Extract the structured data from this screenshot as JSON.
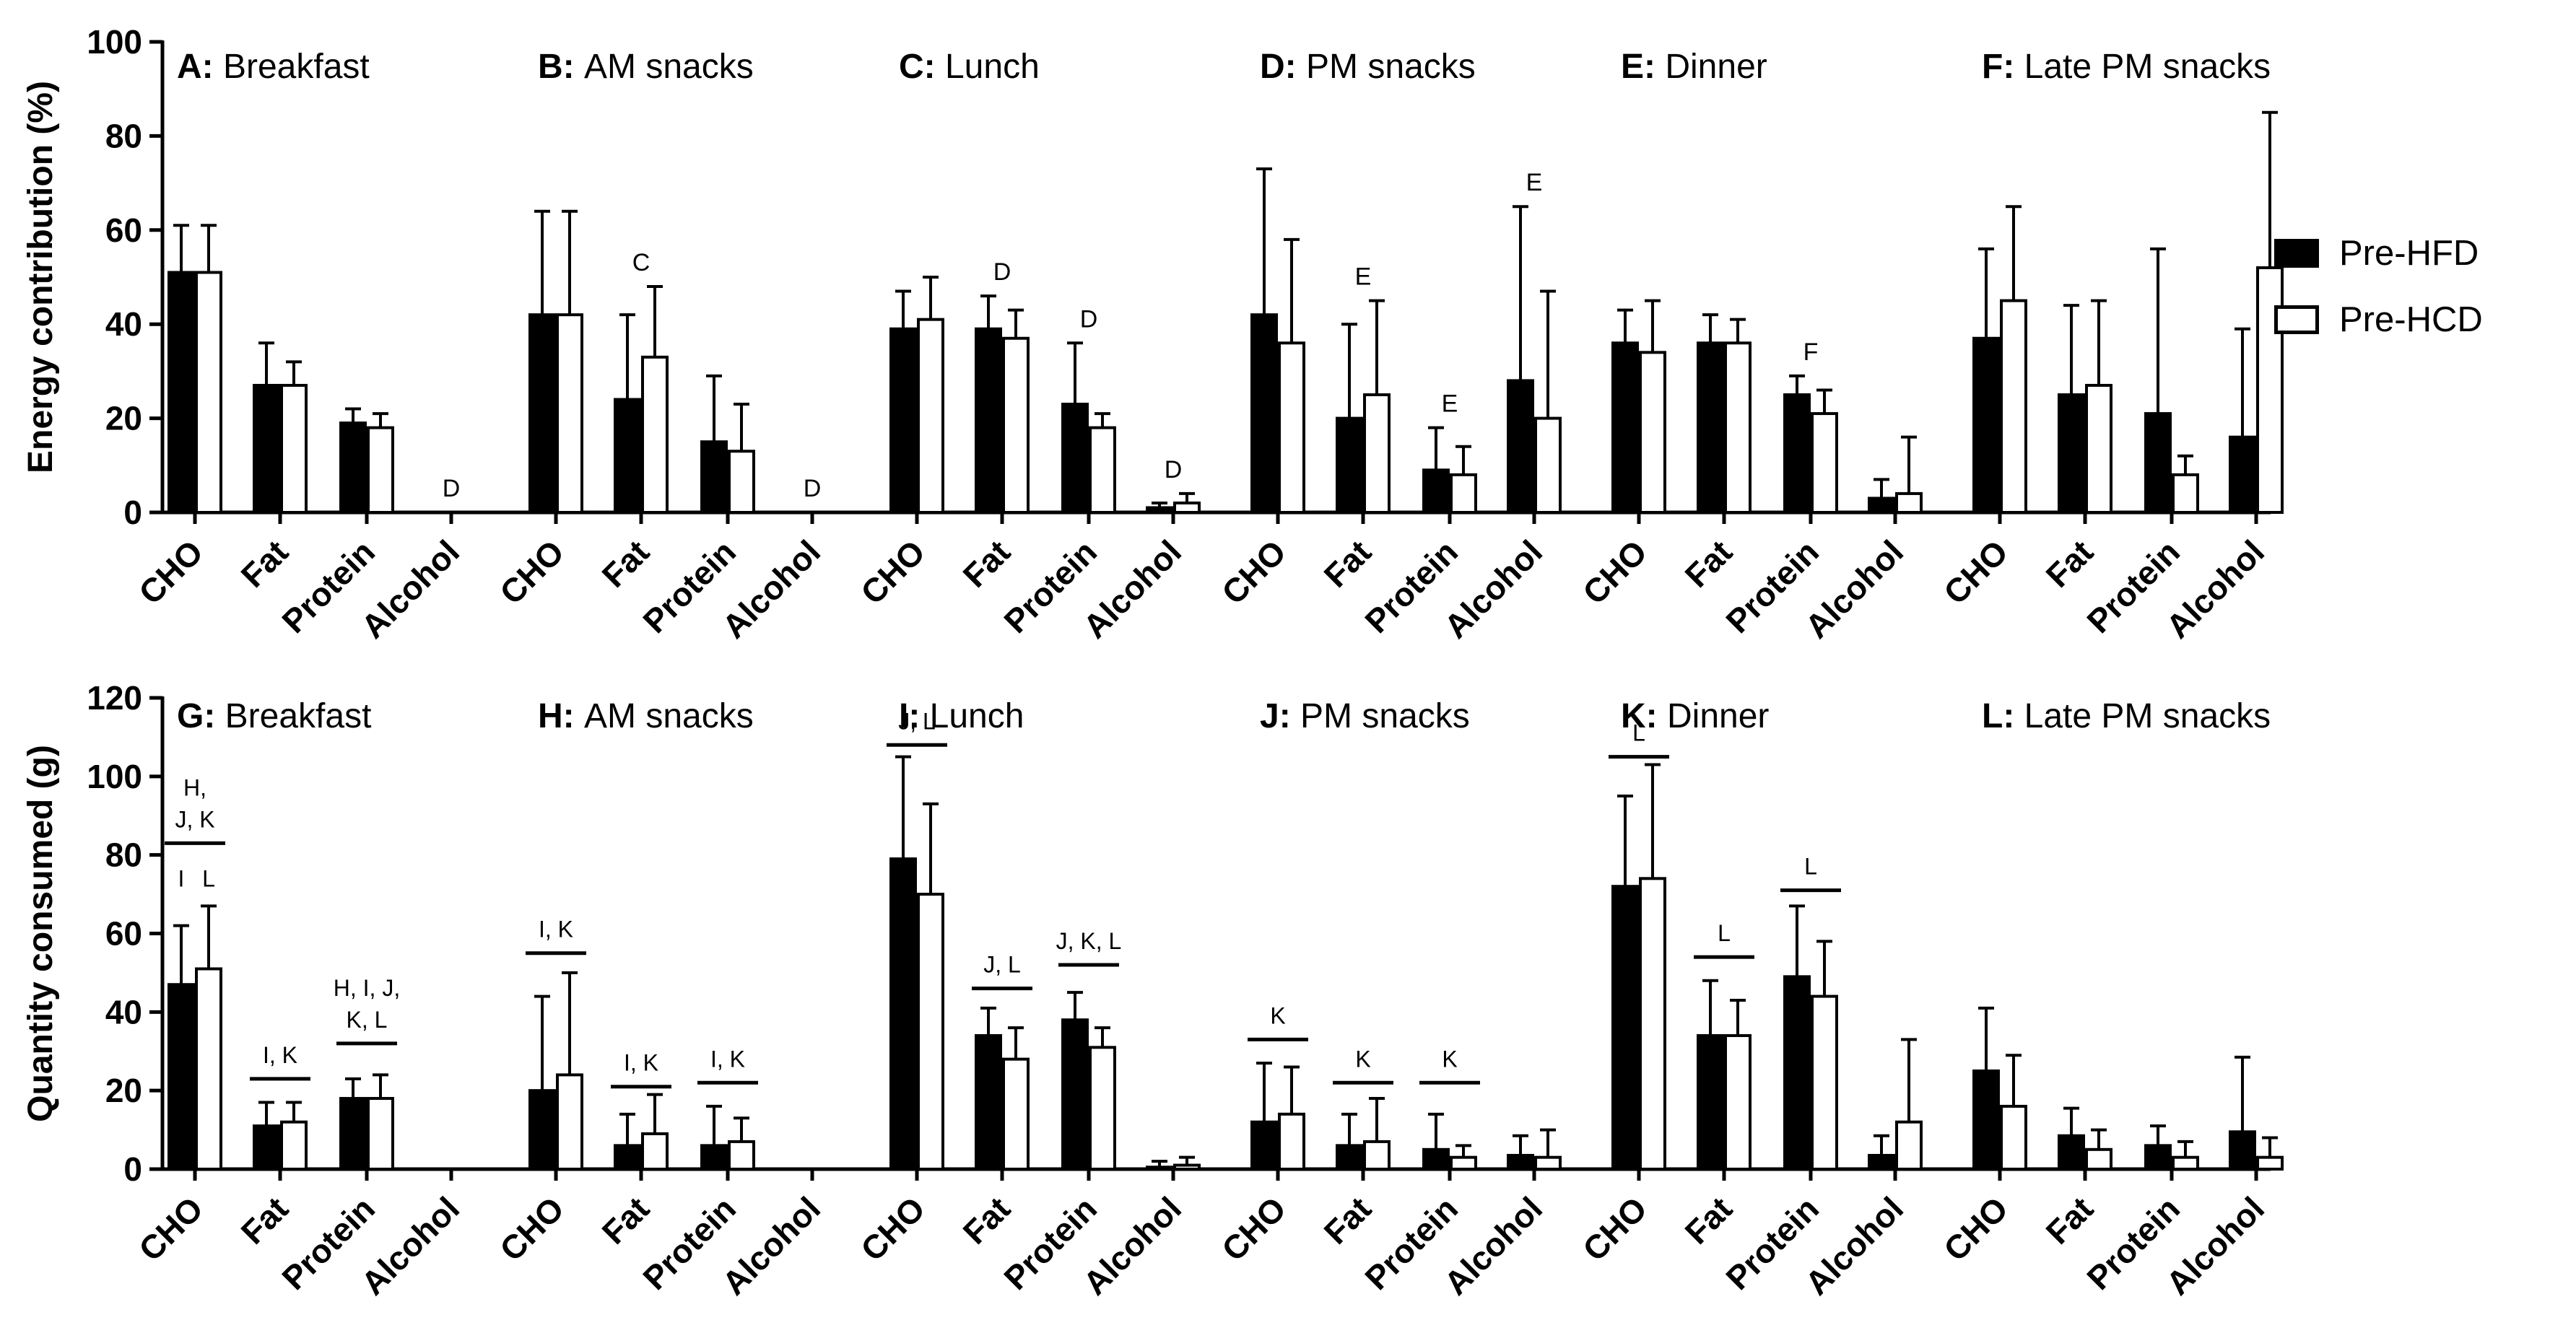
{
  "colors": {
    "series1_fill": "#000000",
    "series2_fill": "#ffffff",
    "axis": "#000000"
  },
  "legend": [
    {
      "label": "Pre-HFD"
    },
    {
      "label": "Pre-HCD"
    }
  ],
  "chart_data": [
    {
      "type": "bar",
      "ylabel": "Energy contribution (%)",
      "ylim": [
        0,
        100
      ],
      "yticks": [
        0,
        20,
        40,
        60,
        80,
        100
      ],
      "categories": [
        "CHO",
        "Fat",
        "Protein",
        "Alcohol"
      ],
      "series_names": [
        "Pre-HFD",
        "Pre-HCD"
      ],
      "panels": [
        {
          "letter": "A:",
          "title": "Breakfast",
          "series": [
            {
              "name": "Pre-HFD",
              "values": [
                51,
                27,
                19,
                0
              ],
              "errors": [
                10,
                9,
                3,
                0
              ]
            },
            {
              "name": "Pre-HCD",
              "values": [
                51,
                27,
                18,
                0
              ],
              "errors": [
                10,
                5,
                3,
                0
              ]
            }
          ],
          "annotations": [
            {
              "category": "Alcohol",
              "text": "D"
            }
          ]
        },
        {
          "letter": "B:",
          "title": "AM snacks",
          "series": [
            {
              "name": "Pre-HFD",
              "values": [
                42,
                24,
                15,
                0
              ],
              "errors": [
                22,
                18,
                14,
                0
              ]
            },
            {
              "name": "Pre-HCD",
              "values": [
                42,
                33,
                13,
                0
              ],
              "errors": [
                22,
                15,
                10,
                0
              ]
            }
          ],
          "annotations": [
            {
              "category": "Fat",
              "text": "C"
            },
            {
              "category": "Alcohol",
              "text": "D"
            }
          ]
        },
        {
          "letter": "C:",
          "title": "Lunch",
          "series": [
            {
              "name": "Pre-HFD",
              "values": [
                39,
                39,
                23,
                1
              ],
              "errors": [
                8,
                7,
                13,
                1
              ]
            },
            {
              "name": "Pre-HCD",
              "values": [
                41,
                37,
                18,
                2
              ],
              "errors": [
                9,
                6,
                3,
                2
              ]
            }
          ],
          "annotations": [
            {
              "category": "Fat",
              "text": "D"
            },
            {
              "category": "Protein",
              "text": "D"
            },
            {
              "category": "Alcohol",
              "text": "D"
            }
          ]
        },
        {
          "letter": "D:",
          "title": "PM snacks",
          "series": [
            {
              "name": "Pre-HFD",
              "values": [
                42,
                20,
                9,
                28
              ],
              "errors": [
                31,
                20,
                9,
                37
              ]
            },
            {
              "name": "Pre-HCD",
              "values": [
                36,
                25,
                8,
                20
              ],
              "errors": [
                22,
                20,
                6,
                27
              ]
            }
          ],
          "annotations": [
            {
              "category": "Fat",
              "text": "E"
            },
            {
              "category": "Protein",
              "text": "E"
            },
            {
              "category": "Alcohol",
              "text": "E"
            }
          ]
        },
        {
          "letter": "E:",
          "title": "Dinner",
          "series": [
            {
              "name": "Pre-HFD",
              "values": [
                36,
                36,
                25,
                3
              ],
              "errors": [
                7,
                6,
                4,
                4
              ]
            },
            {
              "name": "Pre-HCD",
              "values": [
                34,
                36,
                21,
                4
              ],
              "errors": [
                11,
                5,
                5,
                12
              ]
            }
          ],
          "annotations": [
            {
              "category": "Protein",
              "text": "F"
            }
          ]
        },
        {
          "letter": "F:",
          "title": "Late PM snacks",
          "series": [
            {
              "name": "Pre-HFD",
              "values": [
                37,
                25,
                21,
                16
              ],
              "errors": [
                19,
                19,
                35,
                23
              ]
            },
            {
              "name": "Pre-HCD",
              "values": [
                45,
                27,
                8,
                52
              ],
              "errors": [
                20,
                18,
                4,
                33
              ]
            }
          ],
          "annotations": []
        }
      ]
    },
    {
      "type": "bar",
      "ylabel": "Quantity consumed (g)",
      "ylim": [
        0,
        120
      ],
      "yticks": [
        0,
        20,
        40,
        60,
        80,
        100,
        120
      ],
      "categories": [
        "CHO",
        "Fat",
        "Protein",
        "Alcohol"
      ],
      "series_names": [
        "Pre-HFD",
        "Pre-HCD"
      ],
      "panels": [
        {
          "letter": "G:",
          "title": "Breakfast",
          "series": [
            {
              "name": "Pre-HFD",
              "values": [
                47,
                11,
                18,
                0
              ],
              "errors": [
                15,
                6,
                5,
                0
              ]
            },
            {
              "name": "Pre-HCD",
              "values": [
                51,
                12,
                18,
                0
              ],
              "errors": [
                16,
                5,
                6,
                0
              ]
            }
          ],
          "brackets": [
            {
              "category": "CHO",
              "y": 83,
              "lines": [
                "H,",
                "J, K"
              ]
            },
            {
              "category": "Fat",
              "y": 23,
              "lines": [
                "I, K"
              ]
            },
            {
              "category": "Protein",
              "y": 32,
              "lines": [
                "H, I, J,",
                "K, L"
              ]
            }
          ],
          "bar_labels": [
            {
              "category": "CHO",
              "series": 0,
              "text": "I"
            },
            {
              "category": "CHO",
              "series": 1,
              "text": "L"
            }
          ]
        },
        {
          "letter": "H:",
          "title": "AM snacks",
          "series": [
            {
              "name": "Pre-HFD",
              "values": [
                20,
                6,
                6,
                0
              ],
              "errors": [
                24,
                8,
                10,
                0
              ]
            },
            {
              "name": "Pre-HCD",
              "values": [
                24,
                9,
                7,
                0
              ],
              "errors": [
                26,
                10,
                6,
                0
              ]
            }
          ],
          "brackets": [
            {
              "category": "CHO",
              "y": 55,
              "lines": [
                "I, K"
              ]
            },
            {
              "category": "Fat",
              "y": 21,
              "lines": [
                "I, K"
              ]
            },
            {
              "category": "Protein",
              "y": 22,
              "lines": [
                "I, K"
              ]
            }
          ],
          "bar_labels": []
        },
        {
          "letter": "I:",
          "title": "Lunch",
          "series": [
            {
              "name": "Pre-HFD",
              "values": [
                79,
                34,
                38,
                0.5
              ],
              "errors": [
                26,
                7,
                7,
                1.5
              ]
            },
            {
              "name": "Pre-HCD",
              "values": [
                70,
                28,
                31,
                1
              ],
              "errors": [
                23,
                8,
                5,
                2
              ]
            }
          ],
          "brackets": [
            {
              "category": "CHO",
              "y": 108,
              "lines": [
                "J, L"
              ]
            },
            {
              "category": "Fat",
              "y": 46,
              "lines": [
                "J, L"
              ]
            },
            {
              "category": "Protein",
              "y": 52,
              "lines": [
                "J, K, L"
              ]
            }
          ],
          "bar_labels": []
        },
        {
          "letter": "J:",
          "title": "PM snacks",
          "series": [
            {
              "name": "Pre-HFD",
              "values": [
                12,
                6,
                5,
                3.5
              ],
              "errors": [
                15,
                8,
                9,
                5
              ]
            },
            {
              "name": "Pre-HCD",
              "values": [
                14,
                7,
                3,
                3
              ],
              "errors": [
                12,
                11,
                3,
                7
              ]
            }
          ],
          "brackets": [
            {
              "category": "CHO",
              "y": 33,
              "lines": [
                "K"
              ]
            },
            {
              "category": "Fat",
              "y": 22,
              "lines": [
                "K"
              ]
            },
            {
              "category": "Protein",
              "y": 22,
              "lines": [
                "K"
              ]
            }
          ],
          "bar_labels": []
        },
        {
          "letter": "K:",
          "title": "Dinner",
          "series": [
            {
              "name": "Pre-HFD",
              "values": [
                72,
                34,
                49,
                3.5
              ],
              "errors": [
                23,
                14,
                18,
                5
              ]
            },
            {
              "name": "Pre-HCD",
              "values": [
                74,
                34,
                44,
                12
              ],
              "errors": [
                29,
                9,
                14,
                21
              ]
            }
          ],
          "brackets": [
            {
              "category": "CHO",
              "y": 105,
              "lines": [
                "L"
              ]
            },
            {
              "category": "Fat",
              "y": 54,
              "lines": [
                "L"
              ]
            },
            {
              "category": "Protein",
              "y": 71,
              "lines": [
                "L"
              ]
            }
          ],
          "bar_labels": []
        },
        {
          "letter": "L:",
          "title": "Late PM snacks",
          "series": [
            {
              "name": "Pre-HFD",
              "values": [
                25,
                8.5,
                6,
                9.5
              ],
              "errors": [
                16,
                7,
                5,
                19
              ]
            },
            {
              "name": "Pre-HCD",
              "values": [
                16,
                5,
                3,
                3
              ],
              "errors": [
                13,
                5,
                4,
                5
              ]
            }
          ],
          "brackets": [],
          "bar_labels": []
        }
      ]
    }
  ]
}
